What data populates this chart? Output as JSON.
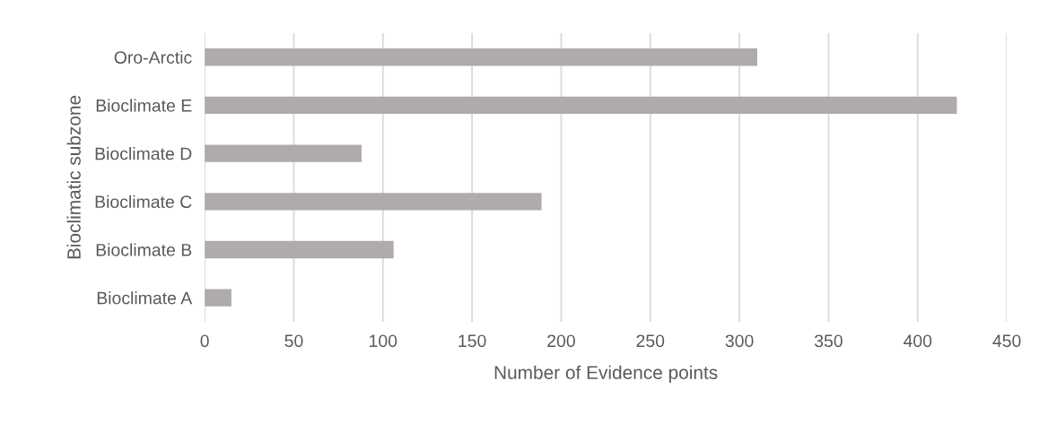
{
  "chart_data": {
    "type": "bar",
    "orientation": "horizontal",
    "xlabel": "Number of Evidence points",
    "ylabel": "Bioclimatic subzone",
    "categories": [
      "Oro-Arctic",
      "Bioclimate E",
      "Bioclimate D",
      "Bioclimate C",
      "Bioclimate B",
      "Bioclimate A"
    ],
    "values": [
      310,
      422,
      88,
      189,
      106,
      15
    ],
    "color": "#afabab",
    "xlim": [
      0,
      450
    ],
    "xticks": [
      0,
      50,
      100,
      150,
      200,
      250,
      300,
      350,
      400,
      450
    ],
    "grid": "x",
    "legend": false
  }
}
